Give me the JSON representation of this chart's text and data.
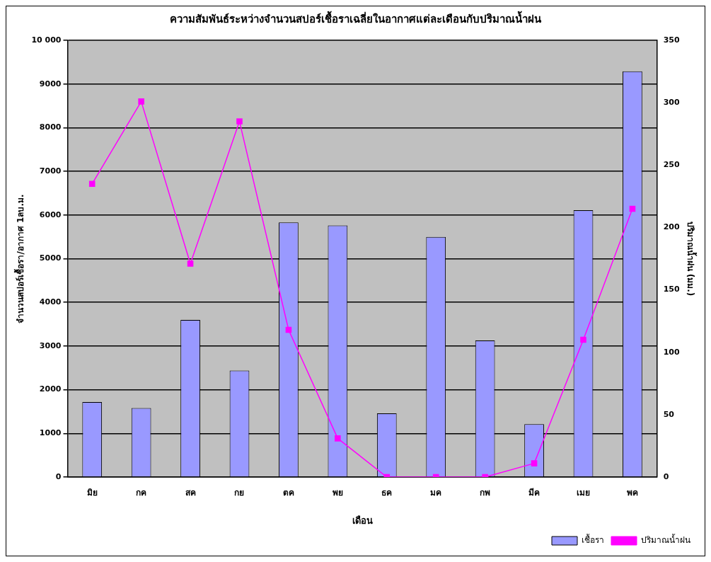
{
  "chart_data": {
    "type": "bar",
    "title": "ความสัมพันธ์ระหว่างจำนวนสปอร์เชื้อราเฉลี่ยในอากาศแต่ละเดือนกับปริมาณน้ำฝน",
    "xlabel": "เดือน",
    "ylabel": "จำนวนสปอร์เชื้อรา/อากาศ 1ลบ.ม.",
    "y2label": "ปริมาณน้ำฝน (มม.)",
    "categories": [
      "มิย",
      "กค",
      "สค",
      "กย",
      "ตค",
      "พย",
      "ธค",
      "มค",
      "กพ",
      "มีค",
      "เมย",
      "พค"
    ],
    "series": [
      {
        "name": "เชื้อรา",
        "color": "#9999ff",
        "values": [
          1720,
          1580,
          3600,
          2440,
          5830,
          5760,
          1460,
          5500,
          3130,
          1210,
          6110,
          9290
        ]
      },
      {
        "name": "ปริมาณน้ำฝน",
        "type": "line",
        "axis": "y2",
        "color": "#ff00ff",
        "marker": "square",
        "values": [
          235,
          301,
          171,
          285,
          118,
          31,
          0,
          0,
          0,
          11,
          110,
          215
        ]
      }
    ],
    "ylim": [
      0,
      10000
    ],
    "yticks": [
      0,
      1000,
      2000,
      3000,
      4000,
      5000,
      6000,
      7000,
      8000,
      9000,
      {
        "value": 10000,
        "label": "10 000"
      }
    ],
    "y2lim": [
      0,
      350
    ],
    "y2ticks": [
      0,
      50,
      100,
      150,
      200,
      250,
      300,
      350
    ],
    "grid": "y",
    "legend": "bottom right"
  }
}
